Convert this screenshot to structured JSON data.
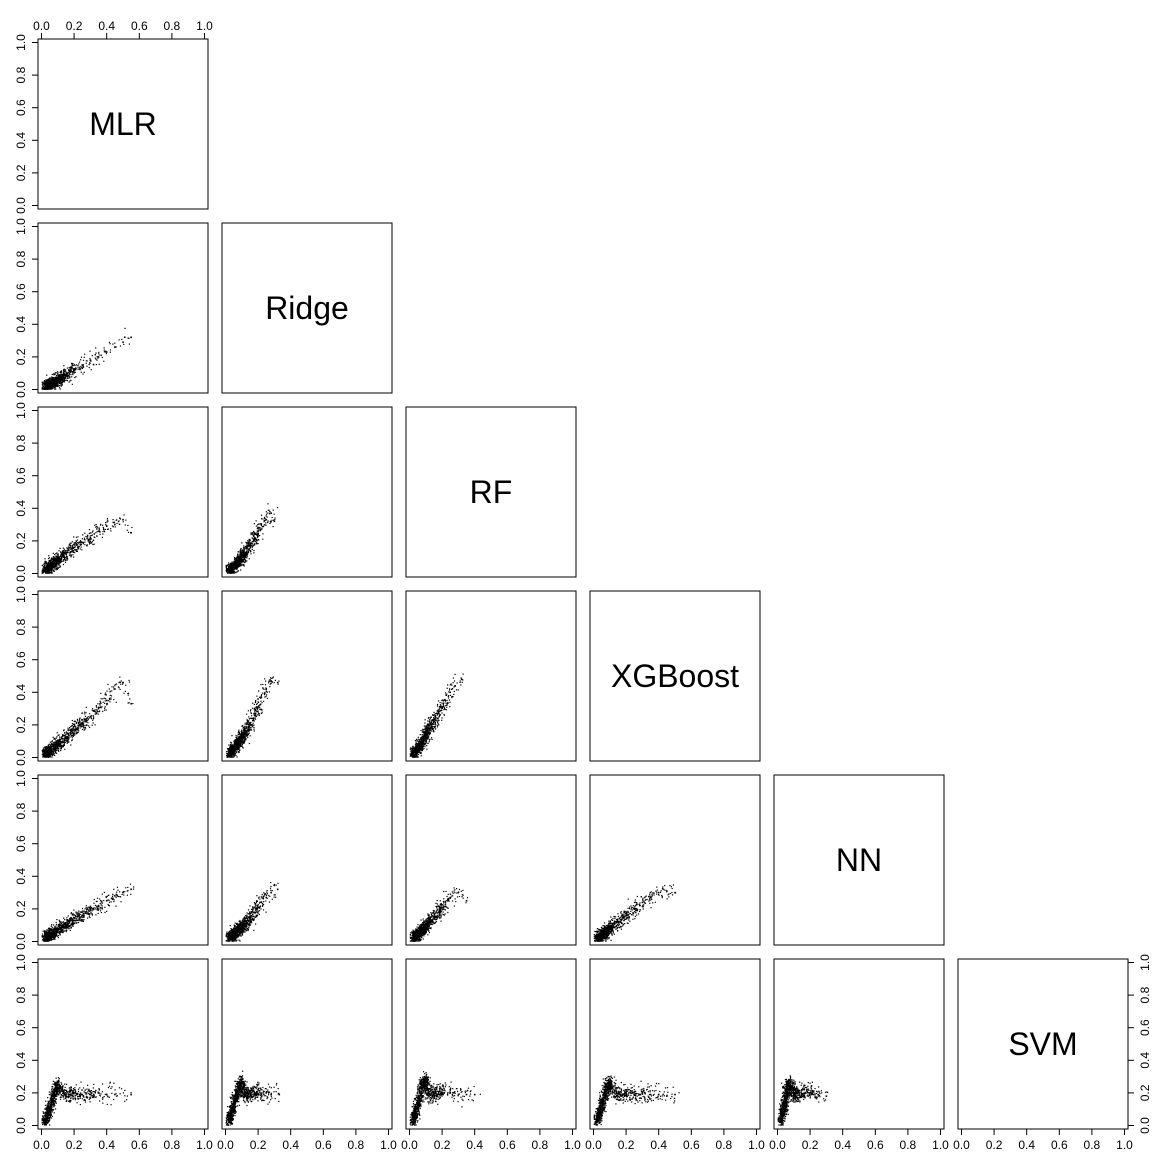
{
  "chart_data": {
    "type": "scatter",
    "layout": "pairs-lower-triangle",
    "variables": [
      "MLR",
      "Ridge",
      "RF",
      "XGBoost",
      "NN",
      "SVM"
    ],
    "xlim": [
      0,
      1
    ],
    "ylim": [
      0,
      1
    ],
    "ticks": [
      0.0,
      0.2,
      0.4,
      0.6,
      0.8,
      1.0
    ],
    "tick_labels": [
      "0.0",
      "0.2",
      "0.4",
      "0.6",
      "0.8",
      "1.0"
    ],
    "marker": "point",
    "color": "#000000",
    "title": "",
    "xlabel": "",
    "ylabel": "",
    "axes": {
      "top": "MLR column",
      "left": "all rows",
      "bottom": "all columns",
      "right": "SVM row"
    },
    "pairs": [
      {
        "x": "MLR",
        "y": "Ridge",
        "points": [
          [
            0.02,
            0.01
          ],
          [
            0.05,
            0.03
          ],
          [
            0.08,
            0.05
          ],
          [
            0.1,
            0.06
          ],
          [
            0.12,
            0.07
          ],
          [
            0.15,
            0.09
          ],
          [
            0.18,
            0.11
          ],
          [
            0.2,
            0.12
          ],
          [
            0.25,
            0.15
          ],
          [
            0.3,
            0.18
          ],
          [
            0.35,
            0.2
          ],
          [
            0.4,
            0.23
          ],
          [
            0.45,
            0.26
          ],
          [
            0.5,
            0.29
          ],
          [
            0.55,
            0.32
          ]
        ]
      },
      {
        "x": "MLR",
        "y": "RF",
        "points": [
          [
            0.02,
            0.02
          ],
          [
            0.05,
            0.04
          ],
          [
            0.08,
            0.06
          ],
          [
            0.1,
            0.09
          ],
          [
            0.15,
            0.12
          ],
          [
            0.2,
            0.16
          ],
          [
            0.25,
            0.19
          ],
          [
            0.3,
            0.22
          ],
          [
            0.35,
            0.26
          ],
          [
            0.4,
            0.29
          ],
          [
            0.45,
            0.3
          ],
          [
            0.5,
            0.33
          ],
          [
            0.55,
            0.25
          ]
        ]
      },
      {
        "x": "MLR",
        "y": "XGBoost",
        "points": [
          [
            0.02,
            0.02
          ],
          [
            0.05,
            0.04
          ],
          [
            0.1,
            0.08
          ],
          [
            0.15,
            0.12
          ],
          [
            0.2,
            0.17
          ],
          [
            0.25,
            0.21
          ],
          [
            0.3,
            0.25
          ],
          [
            0.35,
            0.3
          ],
          [
            0.4,
            0.35
          ],
          [
            0.45,
            0.42
          ],
          [
            0.5,
            0.46
          ],
          [
            0.55,
            0.33
          ]
        ]
      },
      {
        "x": "MLR",
        "y": "NN",
        "points": [
          [
            0.02,
            0.02
          ],
          [
            0.05,
            0.04
          ],
          [
            0.1,
            0.07
          ],
          [
            0.15,
            0.1
          ],
          [
            0.2,
            0.13
          ],
          [
            0.25,
            0.16
          ],
          [
            0.3,
            0.19
          ],
          [
            0.35,
            0.22
          ],
          [
            0.4,
            0.25
          ],
          [
            0.45,
            0.28
          ],
          [
            0.5,
            0.3
          ],
          [
            0.55,
            0.32
          ]
        ]
      },
      {
        "x": "MLR",
        "y": "SVM",
        "points": [
          [
            0.02,
            0.02
          ],
          [
            0.05,
            0.1
          ],
          [
            0.08,
            0.2
          ],
          [
            0.1,
            0.25
          ],
          [
            0.15,
            0.18
          ],
          [
            0.2,
            0.2
          ],
          [
            0.25,
            0.19
          ],
          [
            0.3,
            0.19
          ],
          [
            0.35,
            0.2
          ],
          [
            0.4,
            0.19
          ],
          [
            0.45,
            0.19
          ],
          [
            0.55,
            0.19
          ]
        ]
      },
      {
        "x": "Ridge",
        "y": "RF",
        "points": [
          [
            0.02,
            0.02
          ],
          [
            0.05,
            0.04
          ],
          [
            0.08,
            0.07
          ],
          [
            0.1,
            0.1
          ],
          [
            0.12,
            0.13
          ],
          [
            0.15,
            0.17
          ],
          [
            0.18,
            0.22
          ],
          [
            0.2,
            0.26
          ],
          [
            0.22,
            0.3
          ],
          [
            0.25,
            0.33
          ],
          [
            0.28,
            0.37
          ],
          [
            0.3,
            0.32
          ]
        ]
      },
      {
        "x": "Ridge",
        "y": "XGBoost",
        "points": [
          [
            0.02,
            0.02
          ],
          [
            0.05,
            0.05
          ],
          [
            0.08,
            0.09
          ],
          [
            0.1,
            0.12
          ],
          [
            0.12,
            0.16
          ],
          [
            0.15,
            0.2
          ],
          [
            0.18,
            0.26
          ],
          [
            0.2,
            0.31
          ],
          [
            0.22,
            0.37
          ],
          [
            0.25,
            0.42
          ],
          [
            0.28,
            0.47
          ],
          [
            0.32,
            0.46
          ]
        ]
      },
      {
        "x": "Ridge",
        "y": "NN",
        "points": [
          [
            0.02,
            0.02
          ],
          [
            0.05,
            0.04
          ],
          [
            0.08,
            0.07
          ],
          [
            0.1,
            0.09
          ],
          [
            0.12,
            0.11
          ],
          [
            0.15,
            0.14
          ],
          [
            0.18,
            0.18
          ],
          [
            0.2,
            0.21
          ],
          [
            0.22,
            0.24
          ],
          [
            0.25,
            0.27
          ],
          [
            0.28,
            0.3
          ],
          [
            0.32,
            0.32
          ]
        ]
      },
      {
        "x": "Ridge",
        "y": "SVM",
        "points": [
          [
            0.02,
            0.02
          ],
          [
            0.05,
            0.12
          ],
          [
            0.08,
            0.22
          ],
          [
            0.1,
            0.27
          ],
          [
            0.12,
            0.18
          ],
          [
            0.15,
            0.2
          ],
          [
            0.18,
            0.19
          ],
          [
            0.2,
            0.22
          ],
          [
            0.22,
            0.19
          ],
          [
            0.25,
            0.2
          ],
          [
            0.28,
            0.19
          ],
          [
            0.33,
            0.19
          ]
        ]
      },
      {
        "x": "RF",
        "y": "XGBoost",
        "points": [
          [
            0.02,
            0.02
          ],
          [
            0.05,
            0.05
          ],
          [
            0.08,
            0.1
          ],
          [
            0.1,
            0.14
          ],
          [
            0.12,
            0.18
          ],
          [
            0.15,
            0.22
          ],
          [
            0.18,
            0.27
          ],
          [
            0.2,
            0.31
          ],
          [
            0.22,
            0.35
          ],
          [
            0.25,
            0.4
          ],
          [
            0.28,
            0.44
          ],
          [
            0.32,
            0.48
          ]
        ]
      },
      {
        "x": "RF",
        "y": "NN",
        "points": [
          [
            0.02,
            0.02
          ],
          [
            0.05,
            0.04
          ],
          [
            0.08,
            0.07
          ],
          [
            0.1,
            0.09
          ],
          [
            0.12,
            0.12
          ],
          [
            0.15,
            0.15
          ],
          [
            0.18,
            0.18
          ],
          [
            0.2,
            0.21
          ],
          [
            0.22,
            0.24
          ],
          [
            0.25,
            0.27
          ],
          [
            0.3,
            0.3
          ],
          [
            0.35,
            0.25
          ]
        ]
      },
      {
        "x": "RF",
        "y": "SVM",
        "points": [
          [
            0.02,
            0.02
          ],
          [
            0.05,
            0.12
          ],
          [
            0.08,
            0.25
          ],
          [
            0.1,
            0.28
          ],
          [
            0.12,
            0.18
          ],
          [
            0.15,
            0.2
          ],
          [
            0.18,
            0.19
          ],
          [
            0.2,
            0.22
          ],
          [
            0.25,
            0.2
          ],
          [
            0.3,
            0.19
          ],
          [
            0.35,
            0.19
          ],
          [
            0.4,
            0.19
          ]
        ]
      },
      {
        "x": "XGBoost",
        "y": "NN",
        "points": [
          [
            0.02,
            0.02
          ],
          [
            0.05,
            0.04
          ],
          [
            0.08,
            0.06
          ],
          [
            0.1,
            0.08
          ],
          [
            0.15,
            0.12
          ],
          [
            0.2,
            0.16
          ],
          [
            0.25,
            0.2
          ],
          [
            0.3,
            0.24
          ],
          [
            0.35,
            0.27
          ],
          [
            0.4,
            0.3
          ],
          [
            0.45,
            0.31
          ],
          [
            0.5,
            0.3
          ]
        ]
      },
      {
        "x": "XGBoost",
        "y": "SVM",
        "points": [
          [
            0.02,
            0.02
          ],
          [
            0.05,
            0.12
          ],
          [
            0.08,
            0.22
          ],
          [
            0.1,
            0.27
          ],
          [
            0.15,
            0.18
          ],
          [
            0.2,
            0.2
          ],
          [
            0.25,
            0.19
          ],
          [
            0.3,
            0.2
          ],
          [
            0.35,
            0.19
          ],
          [
            0.4,
            0.19
          ],
          [
            0.45,
            0.18
          ],
          [
            0.5,
            0.19
          ]
        ]
      },
      {
        "x": "NN",
        "y": "SVM",
        "points": [
          [
            0.02,
            0.02
          ],
          [
            0.04,
            0.12
          ],
          [
            0.06,
            0.22
          ],
          [
            0.08,
            0.27
          ],
          [
            0.1,
            0.18
          ],
          [
            0.12,
            0.2
          ],
          [
            0.15,
            0.19
          ],
          [
            0.18,
            0.22
          ],
          [
            0.2,
            0.2
          ],
          [
            0.22,
            0.19
          ],
          [
            0.25,
            0.19
          ],
          [
            0.3,
            0.18
          ]
        ]
      }
    ]
  }
}
